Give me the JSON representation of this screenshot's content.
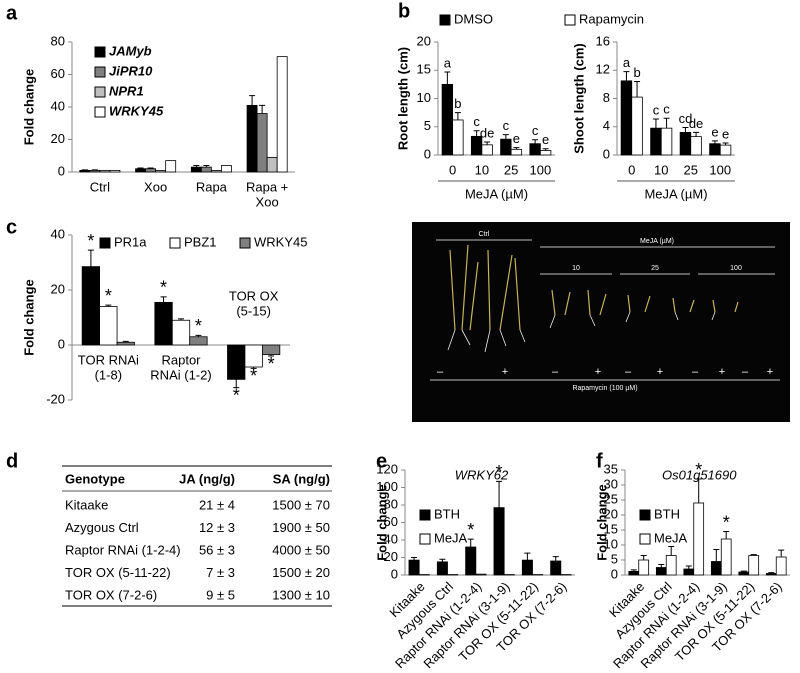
{
  "panel_labels": [
    "a",
    "b",
    "c",
    "d",
    "e",
    "f"
  ],
  "chart_data": [
    {
      "type": "bar",
      "y_label": "Fold change",
      "categories": [
        [
          "Ctrl"
        ],
        [
          "Xoo"
        ],
        [
          "Rapa"
        ],
        [
          "Rapa +",
          "Xoo"
        ]
      ],
      "series": [
        {
          "name": "JAMyb",
          "color": "#000000",
          "values": [
            1,
            2,
            3,
            41
          ],
          "errors": [
            0.3,
            0.5,
            1,
            6
          ]
        },
        {
          "name": "JiPR10",
          "color": "#7f7f7f",
          "values": [
            1,
            2,
            3,
            36
          ],
          "errors": [
            0.3,
            0.5,
            1,
            5
          ]
        },
        {
          "name": "NPR1",
          "color": "#bfbfbf",
          "values": [
            1,
            1,
            1,
            9
          ]
        },
        {
          "name": "WRKY45",
          "color": "#ffffff",
          "values": [
            1,
            7,
            4,
            71
          ]
        }
      ],
      "ylim": [
        0,
        80
      ],
      "yticks": [
        0,
        20,
        40,
        60,
        80
      ]
    },
    {
      "type": "bar",
      "y_label": "Root length (cm)",
      "x_label": "MeJA (µM)",
      "categories": [
        "0",
        "10",
        "25",
        "100"
      ],
      "series": [
        {
          "name": "DMSO",
          "color": "#000000",
          "values": [
            12.5,
            3.3,
            2.8,
            2
          ],
          "errors": [
            2.2,
            1,
            0.8,
            0.7
          ],
          "annotations": [
            "a",
            "c",
            "c",
            "c"
          ]
        },
        {
          "name": "Rapamycin",
          "color": "#ffffff",
          "values": [
            6.2,
            1.8,
            1,
            0.8
          ],
          "errors": [
            1.3,
            0.5,
            0.3,
            0.3
          ],
          "annotations": [
            "b",
            "de",
            "e",
            "e"
          ]
        }
      ],
      "ylim": [
        0,
        20
      ],
      "yticks": [
        0,
        5,
        10,
        15,
        20
      ]
    },
    {
      "type": "bar",
      "y_label": "Shoot length (cm)",
      "x_label": "MeJA (µM)",
      "categories": [
        "0",
        "10",
        "25",
        "100"
      ],
      "series": [
        {
          "color": "#000000",
          "values": [
            10.5,
            3.8,
            3.2,
            1.6
          ],
          "errors": [
            1.3,
            1.3,
            0.7,
            0.4
          ],
          "annotations": [
            "a",
            "c",
            "cd",
            "e"
          ]
        },
        {
          "color": "#ffffff",
          "values": [
            8.2,
            3.8,
            2.6,
            1.4
          ],
          "errors": [
            2.2,
            1.4,
            0.6,
            0.3
          ],
          "annotations": [
            "b",
            "c",
            "de",
            "e"
          ]
        }
      ],
      "ylim": [
        0,
        16
      ],
      "yticks": [
        0,
        4,
        8,
        12,
        16
      ]
    },
    {
      "type": "bar",
      "y_label": "Fold change",
      "categories": [
        [
          "TOR RNAi",
          "(1-8)"
        ],
        [
          "Raptor",
          "RNAi (1-2)"
        ],
        [
          "TOR OX",
          "(5-15)"
        ]
      ],
      "series": [
        {
          "name": "PR1a",
          "color": "#000000",
          "values": [
            28.5,
            15.5,
            -12.5
          ],
          "errors": [
            6,
            2,
            3
          ],
          "annotations": [
            "*",
            "*",
            "*"
          ]
        },
        {
          "name": "PBZ1",
          "color": "#ffffff",
          "values": [
            14,
            9,
            -8
          ],
          "errors": [
            0.5,
            0.5,
            0.5
          ],
          "annotations": [
            "*",
            null,
            "*"
          ]
        },
        {
          "name": "WRKY45",
          "color": "#808080",
          "values": [
            1,
            3,
            -3.5
          ],
          "errors": [
            0.3,
            0.5,
            0.5
          ],
          "annotations": [
            null,
            "*",
            "*"
          ]
        }
      ],
      "ylim": [
        -20,
        40
      ],
      "yticks": [
        -20,
        0,
        20,
        40
      ]
    },
    {
      "type": "bar",
      "title": "WRKY62",
      "y_label": "Fold change",
      "categories": [
        "Kitaake",
        "Azygous Ctrl",
        "Raptor RNAi (1-2-4)",
        "Raptor RNAi (3-1-9)",
        "TOR OX (5-11-22)",
        "TOR OX (7-2-6)"
      ],
      "series": [
        {
          "name": "BTH",
          "color": "#000000",
          "values": [
            17,
            15,
            32,
            77,
            17,
            16
          ],
          "errors": [
            3,
            3,
            9,
            30,
            8,
            5
          ],
          "annotations": [
            null,
            null,
            "*",
            "*",
            null,
            null
          ]
        },
        {
          "name": "MeJA",
          "color": "#ffffff",
          "values": [
            0.5,
            0.5,
            1,
            0.5,
            0.5,
            0.5
          ]
        }
      ],
      "ylim": [
        0,
        120
      ],
      "yticks": [
        0,
        20,
        40,
        60,
        80,
        100,
        120
      ]
    },
    {
      "type": "bar",
      "title": "Os01g51690",
      "y_label": "Fold change",
      "categories": [
        "Kitaake",
        "Azygous Ctrl",
        "Raptor RNAi (1-2-4)",
        "Raptor RNAi (3-1-9)",
        "TOR OX (5-11-22)",
        "TOR OX (7-2-6)"
      ],
      "series": [
        {
          "name": "BTH",
          "color": "#000000",
          "values": [
            1.2,
            2.5,
            2,
            4.5,
            1,
            0.5
          ],
          "errors": [
            0.5,
            1,
            1,
            4,
            0.3,
            0.3
          ]
        },
        {
          "name": "MeJA",
          "color": "#ffffff",
          "values": [
            5,
            6.5,
            24,
            12,
            6.5,
            6
          ],
          "errors": [
            1.5,
            3,
            8,
            2.5,
            0.3,
            2.3
          ],
          "annotations": [
            null,
            null,
            "*",
            "*",
            null,
            null
          ]
        }
      ],
      "ylim": [
        0,
        35
      ],
      "yticks": [
        0,
        5,
        10,
        15,
        20,
        25,
        30,
        35
      ]
    }
  ],
  "photo": {
    "ctrl": "Ctrl",
    "meja": "MeJA (µM)",
    "doses": [
      "10",
      "25",
      "100"
    ],
    "signs": [
      "–",
      "+",
      "–",
      "+",
      "–",
      "+",
      "–",
      "+"
    ],
    "rapamycin": "Rapamycin (100 µM)"
  },
  "table": {
    "header": [
      "Genotype",
      "JA (ng/g)",
      "SA (ng/g)"
    ],
    "rows": [
      [
        "Kitaake",
        "21 ± 4",
        "1500 ± 70"
      ],
      [
        "Azygous Ctrl",
        "12 ± 3",
        "1900 ± 50"
      ],
      [
        "Raptor RNAi (1-2-4)",
        "56 ± 3",
        "4000 ± 50"
      ],
      [
        "TOR OX (5-11-22)",
        "7 ± 3",
        "1500 ± 20"
      ],
      [
        "TOR OX (7-2-6)",
        "9 ± 5",
        "1300 ± 10"
      ]
    ]
  }
}
